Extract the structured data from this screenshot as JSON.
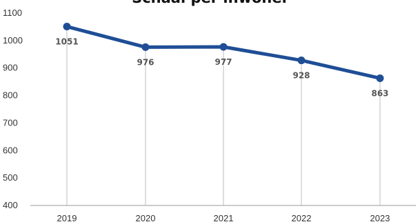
{
  "chart_data": {
    "type": "line",
    "title": "Schaal per inwoner",
    "xlabel": "",
    "ylabel": "",
    "categories": [
      "2019",
      "2020",
      "2021",
      "2022",
      "2023"
    ],
    "series": [
      {
        "values": [
          1051,
          976,
          977,
          928,
          863
        ]
      }
    ],
    "data_labels": [
      "1051",
      "976",
      "977",
      "928",
      "863"
    ],
    "ylim": [
      400,
      1100
    ],
    "yticks": [
      400,
      500,
      600,
      700,
      800,
      900,
      1000,
      1100
    ],
    "ytick_labels": [
      "400",
      "500",
      "600",
      "700",
      "800",
      "900",
      "1000",
      "1100"
    ],
    "grid": "vertical drop lines",
    "line_color": "#1f4e96",
    "dropline_color": "#bdbdbd",
    "axis_color": "#999999"
  }
}
